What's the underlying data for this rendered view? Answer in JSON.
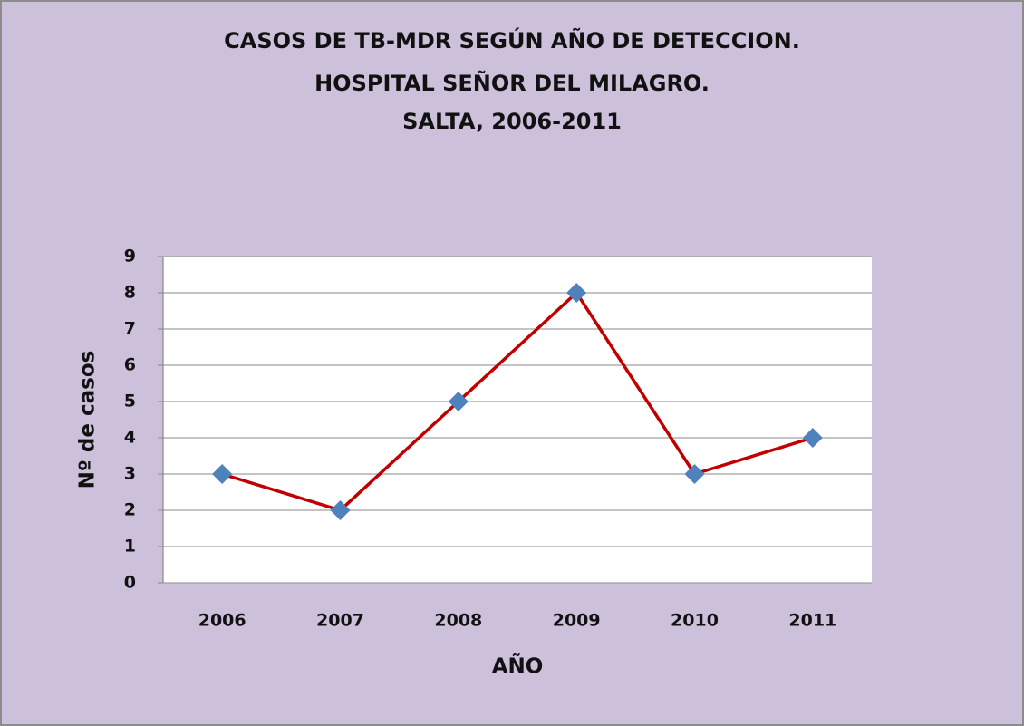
{
  "chart_data": {
    "type": "line",
    "title": [
      "CASOS DE TB-MDR SEGÚN AÑO DE DETECCION.",
      "HOSPITAL SEÑOR DEL MILAGRO.",
      "SALTA, 2006-2011"
    ],
    "x_label": "AÑO",
    "y_label": "Nº de casos",
    "categories": [
      "2006",
      "2007",
      "2008",
      "2009",
      "2010",
      "2011"
    ],
    "series": [
      {
        "color": "#c00000",
        "marker_color": "#4f81bd",
        "values": [
          3,
          2,
          5,
          8,
          3,
          4
        ]
      }
    ],
    "ylim": [
      0,
      9
    ],
    "yticks": [
      0,
      1,
      2,
      3,
      4,
      5,
      6,
      7,
      8,
      9
    ],
    "grid": true
  }
}
